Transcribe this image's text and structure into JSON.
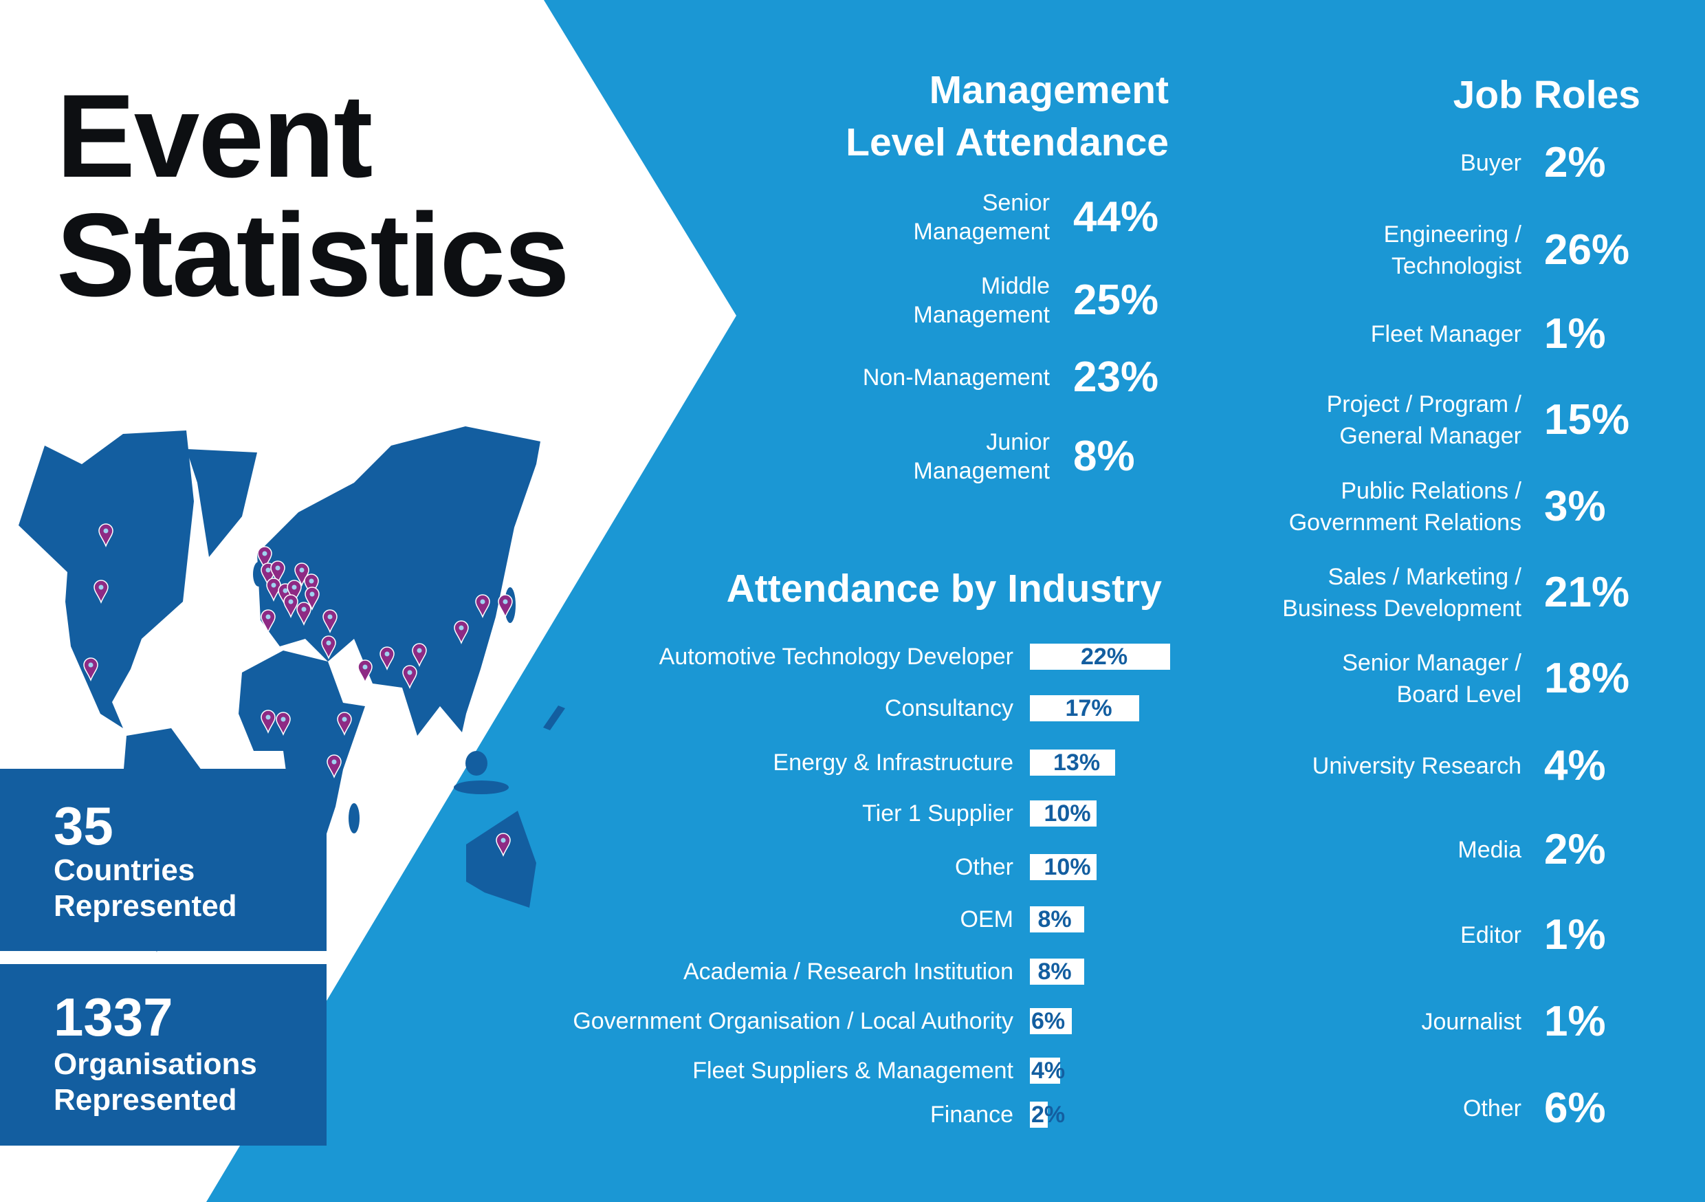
{
  "title": {
    "line1": "Event",
    "line2": "Statistics"
  },
  "colors": {
    "blue_panel": "#1b97d4",
    "dark_blue": "#135ea0",
    "pin": "#8e2a84",
    "title": "#0d0f12"
  },
  "map": {
    "icon": "world-map-with-location-pins"
  },
  "stats": [
    {
      "value": "35",
      "label_line1": "Countries",
      "label_line2": "Represented"
    },
    {
      "value": "1337",
      "label_line1": "Organisations",
      "label_line2": "Represented"
    }
  ],
  "management": {
    "title_line1": "Management",
    "title_line2": "Level Attendance",
    "rows": [
      {
        "label_line1": "Senior",
        "label_line2": "Management",
        "value": "44%"
      },
      {
        "label_line1": "Middle",
        "label_line2": "Management",
        "value": "25%"
      },
      {
        "label_line1": "Non-Management",
        "label_line2": "",
        "value": "23%"
      },
      {
        "label_line1": "Junior",
        "label_line2": "Management",
        "value": "8%"
      }
    ]
  },
  "job_roles": {
    "title": "Job Roles",
    "rows": [
      {
        "label_line1": "Buyer",
        "label_line2": "",
        "value": "2%"
      },
      {
        "label_line1": "Engineering /",
        "label_line2": "Technologist",
        "value": "26%"
      },
      {
        "label_line1": "Fleet Manager",
        "label_line2": "",
        "value": "1%"
      },
      {
        "label_line1": "Project / Program /",
        "label_line2": "General Manager",
        "value": "15%"
      },
      {
        "label_line1": "Public Relations /",
        "label_line2": "Government Relations",
        "value": "3%"
      },
      {
        "label_line1": "Sales / Marketing /",
        "label_line2": "Business Development",
        "value": "21%"
      },
      {
        "label_line1": "Senior Manager /",
        "label_line2": "Board Level",
        "value": "18%"
      },
      {
        "label_line1": "University Research",
        "label_line2": "",
        "value": "4%"
      },
      {
        "label_line1": "Media",
        "label_line2": "",
        "value": "2%"
      },
      {
        "label_line1": "Editor",
        "label_line2": "",
        "value": "1%"
      },
      {
        "label_line1": "Journalist",
        "label_line2": "",
        "value": "1%"
      },
      {
        "label_line1": "Other",
        "label_line2": "",
        "value": "6%"
      }
    ]
  },
  "chart_data": {
    "type": "bar",
    "orientation": "horizontal",
    "title": "Attendance by Industry",
    "categories": [
      "Automotive Technology Developer",
      "Consultancy",
      "Energy & Infrastructure",
      "Tier 1 Supplier",
      "Other",
      "OEM",
      "Academia / Research Institution",
      "Government Organisation / Local  Authority",
      "Fleet Suppliers & Management",
      "Finance"
    ],
    "values": [
      22,
      17,
      13,
      10,
      10,
      8,
      8,
      6,
      4,
      2
    ],
    "data_labels": [
      "22%",
      "17%",
      "13%",
      "10%",
      "10%",
      "8%",
      "8%",
      "6%",
      "4%",
      "2%"
    ],
    "unit": "%",
    "bar_color": "#ffffff",
    "grid": false
  }
}
